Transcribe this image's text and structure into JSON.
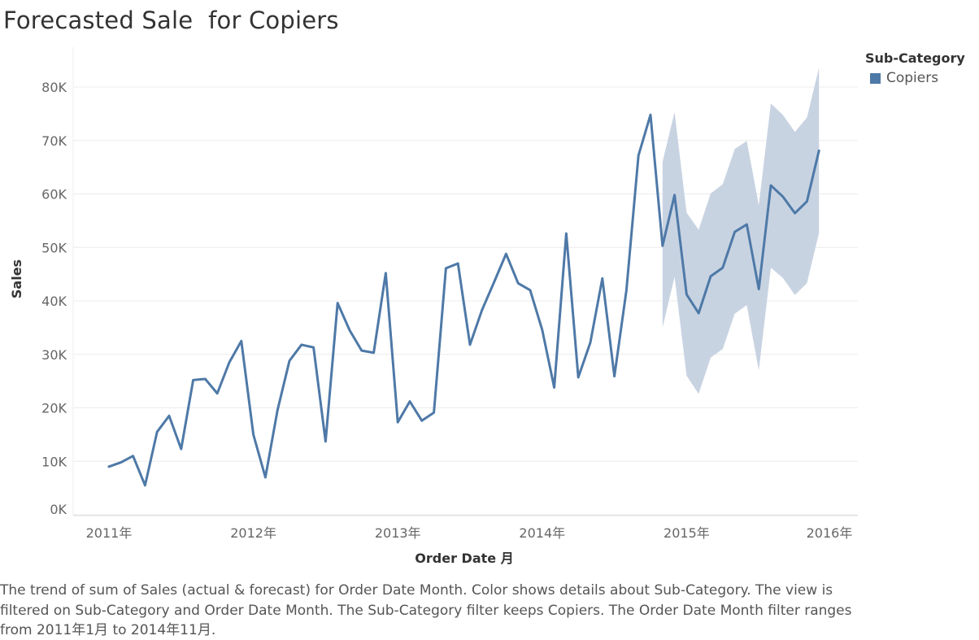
{
  "title": "Forecasted Sale  for Copiers",
  "legend": {
    "title": "Sub-Category",
    "items": [
      {
        "label": "Copiers",
        "color": "#4e79a7"
      }
    ]
  },
  "caption": "The trend of sum of Sales (actual & forecast)  for Order Date Month.  Color shows details about Sub-Category. The view is filtered on Sub-Category and Order Date Month. The Sub-Category filter keeps Copiers. The Order Date Month filter ranges from 2011年1月 to 2014年11月.",
  "colors": {
    "line": "#4e79a7",
    "band": "#c8d3e2",
    "grid": "#ececec"
  },
  "chart_data": {
    "type": "line",
    "title": "Forecasted Sale  for Copiers",
    "xlabel": "Order Date 月",
    "ylabel": "Sales",
    "x_tick_labels": [
      "2011年",
      "2012年",
      "2013年",
      "2014年",
      "2015年",
      "2016年"
    ],
    "y_ticks": [
      0,
      10000,
      20000,
      30000,
      40000,
      50000,
      60000,
      70000,
      80000
    ],
    "y_tick_labels": [
      "0K",
      "10K",
      "20K",
      "30K",
      "40K",
      "50K",
      "60K",
      "70K",
      "80K"
    ],
    "ylim": [
      0,
      85000
    ],
    "grid": true,
    "legend_position": "top-right",
    "series": [
      {
        "name": "Copiers",
        "x": [
          "2011-01",
          "2011-02",
          "2011-03",
          "2011-04",
          "2011-05",
          "2011-06",
          "2011-07",
          "2011-08",
          "2011-09",
          "2011-10",
          "2011-11",
          "2011-12",
          "2012-01",
          "2012-02",
          "2012-03",
          "2012-04",
          "2012-05",
          "2012-06",
          "2012-07",
          "2012-08",
          "2012-09",
          "2012-10",
          "2012-11",
          "2012-12",
          "2013-01",
          "2013-02",
          "2013-03",
          "2013-04",
          "2013-05",
          "2013-06",
          "2013-07",
          "2013-08",
          "2013-09",
          "2013-10",
          "2013-11",
          "2013-12",
          "2014-01",
          "2014-02",
          "2014-03",
          "2014-04",
          "2014-05",
          "2014-06",
          "2014-07",
          "2014-08",
          "2014-09",
          "2014-10",
          "2014-11",
          "2014-12",
          "2015-01",
          "2015-02",
          "2015-03",
          "2015-04",
          "2015-05",
          "2015-06",
          "2015-07",
          "2015-08",
          "2015-09",
          "2015-10",
          "2015-11",
          "2015-12"
        ],
        "values": [
          9000,
          9800,
          11000,
          5500,
          15500,
          18500,
          12300,
          25200,
          25400,
          22700,
          28500,
          32500,
          15000,
          7000,
          19500,
          28800,
          31800,
          31300,
          13700,
          39600,
          34500,
          30700,
          30300,
          45200,
          17300,
          21200,
          17600,
          19100,
          46100,
          47000,
          31800,
          38300,
          43500,
          48800,
          43300,
          42000,
          34600,
          23800,
          52600,
          25700,
          32200,
          44200,
          25900,
          42000,
          67200,
          74800,
          50300,
          59800,
          41200,
          37700,
          44600,
          46200,
          52900,
          54300,
          42200,
          61600,
          59500,
          56400,
          58600,
          68100
        ]
      }
    ],
    "forecast_band": {
      "x": [
        "2014-11",
        "2014-12",
        "2015-01",
        "2015-02",
        "2015-03",
        "2015-04",
        "2015-05",
        "2015-06",
        "2015-07",
        "2015-08",
        "2015-09",
        "2015-10",
        "2015-11",
        "2015-12"
      ],
      "upper": [
        66000,
        75300,
        56500,
        53300,
        60100,
        61800,
        68400,
        69900,
        57900,
        76900,
        74800,
        71600,
        74300,
        83600
      ],
      "lower": [
        35000,
        44500,
        26000,
        22600,
        29400,
        31000,
        37600,
        39200,
        27000,
        46200,
        44300,
        41100,
        43300,
        52700
      ]
    }
  }
}
